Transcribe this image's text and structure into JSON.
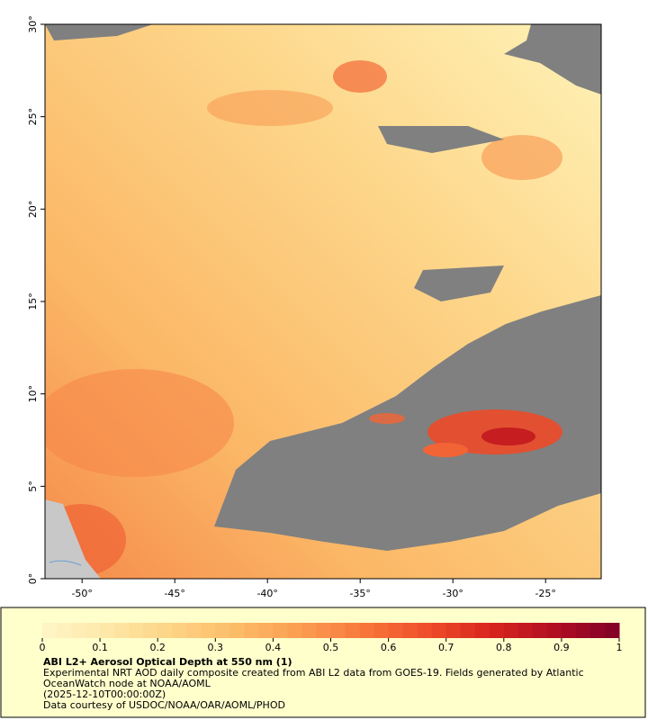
{
  "map": {
    "xlim": [
      -52,
      -22
    ],
    "ylim": [
      0,
      30
    ],
    "xticks": [
      {
        "value": -50,
        "label": "-50°"
      },
      {
        "value": -45,
        "label": "-45°"
      },
      {
        "value": -40,
        "label": "-40°"
      },
      {
        "value": -35,
        "label": "-35°"
      },
      {
        "value": -30,
        "label": "-30°"
      },
      {
        "value": -25,
        "label": "-25°"
      }
    ],
    "yticks": [
      {
        "value": 0,
        "label": "0°"
      },
      {
        "value": 5,
        "label": "5°"
      },
      {
        "value": 10,
        "label": "10°"
      },
      {
        "value": 15,
        "label": "15°"
      },
      {
        "value": 20,
        "label": "20°"
      },
      {
        "value": 25,
        "label": "25°"
      },
      {
        "value": 30,
        "label": "30°"
      }
    ]
  },
  "colorbar": {
    "range": [
      0,
      1
    ],
    "ticks": [
      0,
      0.1,
      0.2,
      0.3,
      0.4,
      0.5,
      0.6,
      0.7,
      0.8,
      0.9,
      1
    ],
    "colors": [
      "#fff6c8",
      "#fee8a8",
      "#fdd486",
      "#fcbc68",
      "#fb9e52",
      "#f7783c",
      "#ef4e2a",
      "#d9241e",
      "#b00e22",
      "#800026"
    ]
  },
  "caption": {
    "title": "ABI L2+ Aerosol Optical Depth at 550 nm (1)",
    "description": "Experimental NRT AOD daily composite created from ABI L2 data from GOES-19. Fields generated by Atlantic OceanWatch node at NOAA/AOML",
    "date": "(2025-12-10T00:00:00Z)",
    "credit": "Data courtesy of USDOC/NOAA/OAR/AOML/PHOD"
  }
}
